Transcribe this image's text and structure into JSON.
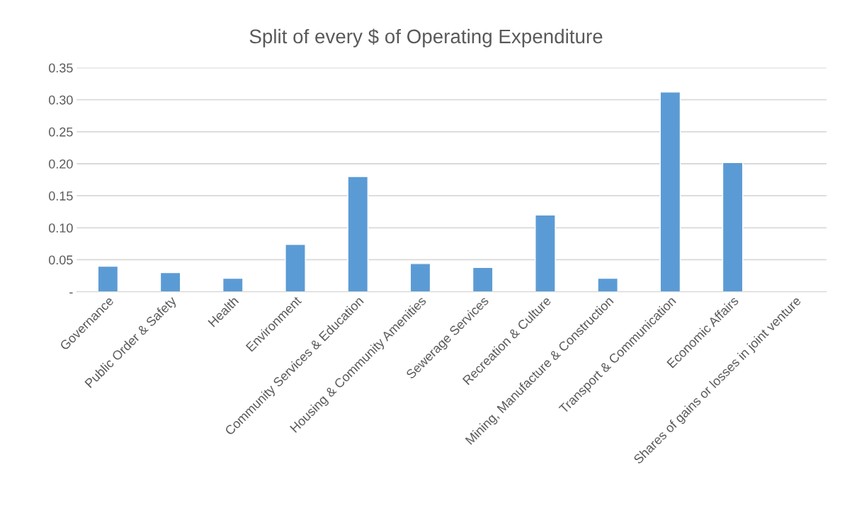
{
  "chart_data": {
    "type": "bar",
    "title": "Split of every $ of Operating Expenditure",
    "categories": [
      "Governance",
      "Public Order & Safety",
      "Health",
      "Environment",
      "Community Services & Education",
      "Housing & Community Amenities",
      "Sewerage Services",
      "Recreation & Culture",
      "Mining, Manufacture & Construction",
      "Transport & Communication",
      "Economic Affairs",
      "Shares of gains or losses in joint venture"
    ],
    "values": [
      0.04,
      0.03,
      0.021,
      0.074,
      0.18,
      0.044,
      0.038,
      0.12,
      0.021,
      0.312,
      0.202,
      null
    ],
    "color": "#5b9bd5",
    "ylim": [
      0,
      0.35
    ],
    "yticks": [
      {
        "value": 0,
        "label": "-"
      },
      {
        "value": 0.05,
        "label": "0.05"
      },
      {
        "value": 0.1,
        "label": "0.10"
      },
      {
        "value": 0.15,
        "label": "0.15"
      },
      {
        "value": 0.2,
        "label": "0.20"
      },
      {
        "value": 0.25,
        "label": "0.25"
      },
      {
        "value": 0.3,
        "label": "0.30"
      },
      {
        "value": 0.35,
        "label": "0.35"
      }
    ],
    "grid": "y",
    "legend": false
  }
}
